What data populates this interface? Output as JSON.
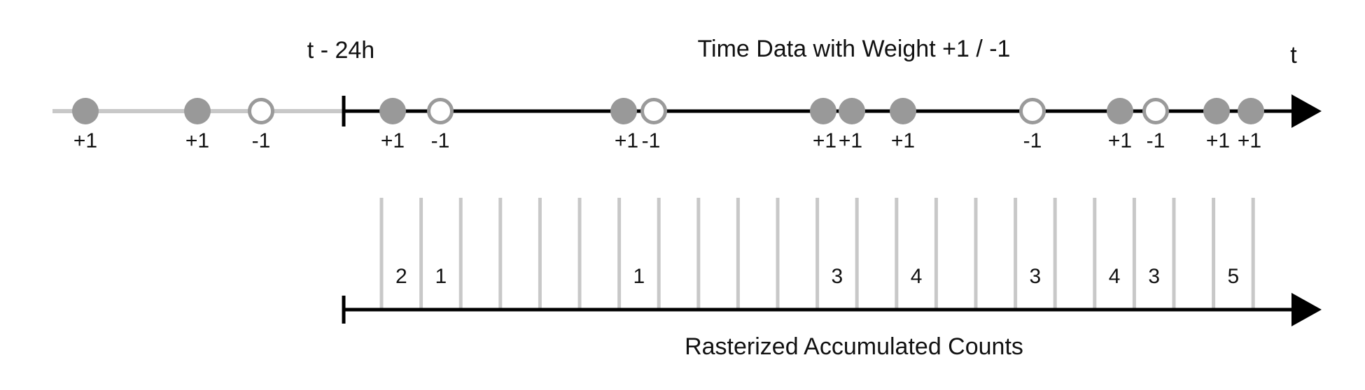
{
  "title": "Time Data with Weight +1 / -1",
  "window_start_label": "t - 24h",
  "time_axis_label": "t",
  "bottom_caption": "Rasterized Accumulated Counts",
  "colors": {
    "axis": "#000000",
    "history_line": "#c8c8c8",
    "positive_event_fill": "#999999",
    "negative_event_stroke": "#9a9a9a",
    "bin_line": "#c8c8c8"
  },
  "history_events": [
    {
      "weight": "+1"
    },
    {
      "weight": "+1"
    },
    {
      "weight": "-1"
    }
  ],
  "window_events": [
    {
      "weight": "+1"
    },
    {
      "weight": "-1"
    },
    {
      "weight": "+1"
    },
    {
      "weight": "-1"
    },
    {
      "weight": "+1"
    },
    {
      "weight": "+1"
    },
    {
      "weight": "+1"
    },
    {
      "weight": "-1"
    },
    {
      "weight": "+1"
    },
    {
      "weight": "-1"
    },
    {
      "weight": "+1"
    },
    {
      "weight": "+1"
    }
  ],
  "bins": [
    "2",
    "1",
    "",
    "",
    "",
    "",
    "1",
    "",
    "",
    "",
    "",
    "3",
    "",
    "4",
    "",
    "",
    "3",
    "",
    "4",
    "3",
    "",
    "5"
  ]
}
